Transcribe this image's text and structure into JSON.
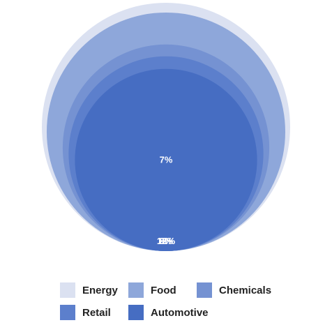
{
  "chart_data": {
    "type": "pie",
    "variant": "nested-concentric-circles",
    "title": "",
    "series": [
      {
        "name": "Energy",
        "value": 13,
        "label": "13%",
        "color": "#dbe1f1"
      },
      {
        "name": "Food",
        "value": 12,
        "label": "12%",
        "color": "#8ea7da"
      },
      {
        "name": "Chemicals",
        "value": 9,
        "label": "9%",
        "color": "#7592d2"
      },
      {
        "name": "Retail",
        "value": 8,
        "label": "8%",
        "color": "#5c7fcc"
      },
      {
        "name": "Automotive",
        "value": 7,
        "label": "7%",
        "color": "#466dc2"
      }
    ],
    "legend_position": "bottom"
  }
}
